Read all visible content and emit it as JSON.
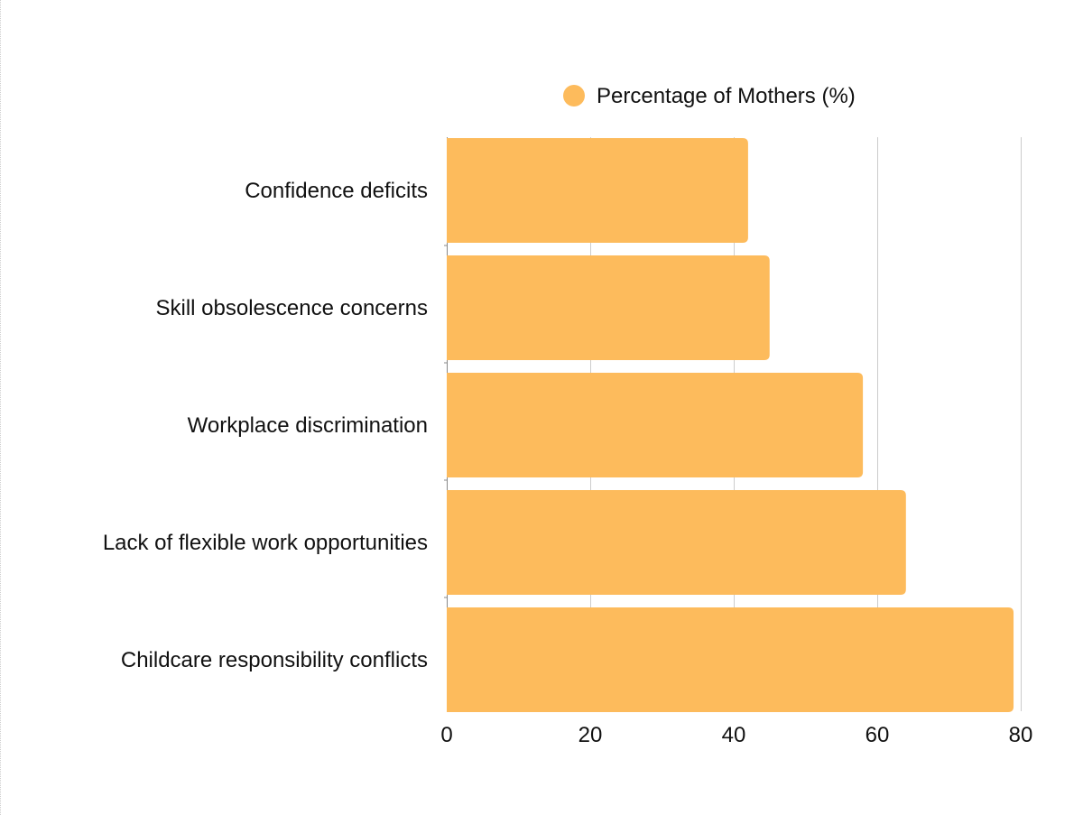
{
  "chart_data": {
    "type": "bar",
    "orientation": "horizontal",
    "categories": [
      "Confidence deficits",
      "Skill obsolescence concerns",
      "Workplace discrimination",
      "Lack of flexible work opportunities",
      "Childcare responsibility conflicts"
    ],
    "series": [
      {
        "name": "Percentage of Mothers (%)",
        "values": [
          42,
          45,
          58,
          64,
          79
        ],
        "color": "#FDBB5C"
      }
    ],
    "title": "",
    "xlabel": "",
    "ylabel": "",
    "xlim": [
      0,
      80
    ],
    "xticks": [
      0,
      20,
      40,
      60,
      80
    ],
    "grid": true,
    "legend_position": "top-center"
  },
  "colors": {
    "bar": "#FDBB5C",
    "grid": "#cccccc",
    "axis": "#888888",
    "text": "#111111"
  }
}
